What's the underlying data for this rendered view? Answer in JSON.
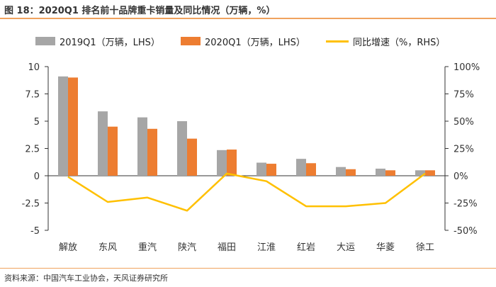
{
  "title": "图 18：2020Q1 排名前十品牌重卡销量及同比情况（万辆，%）",
  "source": "资料来源：中国汽车工业协会，天风证券研究所",
  "colors": {
    "s2019": "#a6a6a6",
    "s2020": "#ed7d31",
    "yoy": "#ffc000",
    "accent": "#f0a35e"
  },
  "chart_data": {
    "type": "bar",
    "categories": [
      "解放",
      "东风",
      "重汽",
      "陕汽",
      "福田",
      "江淮",
      "红岩",
      "大运",
      "华菱",
      "徐工"
    ],
    "series": [
      {
        "name": "2019Q1（万辆，LHS）",
        "type": "bar",
        "axis": "left",
        "values": [
          9.1,
          5.9,
          5.35,
          5.0,
          2.35,
          1.2,
          1.55,
          0.8,
          0.65,
          0.5
        ]
      },
      {
        "name": "2020Q1（万辆，LHS）",
        "type": "bar",
        "axis": "left",
        "values": [
          9.0,
          4.5,
          4.3,
          3.4,
          2.4,
          1.1,
          1.15,
          0.6,
          0.5,
          0.5
        ]
      },
      {
        "name": "同比增速（%，RHS）",
        "type": "line",
        "axis": "right",
        "values": [
          -1,
          -24,
          -20,
          -32,
          2,
          -5,
          -28,
          -28,
          -25,
          2
        ]
      }
    ],
    "left_axis": {
      "ylim": [
        -5,
        10
      ],
      "ticks": [
        "10",
        "7.5",
        "5",
        "2.5",
        "0",
        "-2.5",
        "-5"
      ]
    },
    "right_axis": {
      "ylim": [
        -50,
        100
      ],
      "ticks": [
        "100%",
        "75%",
        "50%",
        "25%",
        "0%",
        "-25%",
        "-50%"
      ]
    },
    "legend_position": "top",
    "grid": false
  }
}
